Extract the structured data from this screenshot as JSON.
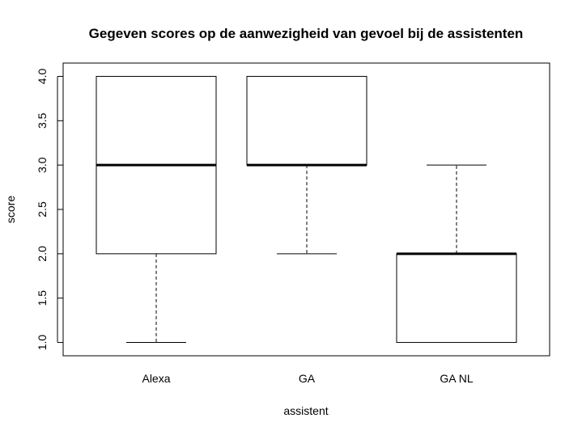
{
  "chart_data": {
    "type": "box",
    "title": "Gegeven scores op de aanwezigheid van gevoel bij de assistenten",
    "xlabel": "assistent",
    "ylabel": "score",
    "ylim": [
      0.85,
      4.15
    ],
    "yticks": [
      "1.0",
      "1.5",
      "2.0",
      "2.5",
      "3.0",
      "3.5",
      "4.0"
    ],
    "grid": false,
    "categories": [
      "Alexa",
      "GA",
      "GA NL"
    ],
    "boxes": [
      {
        "name": "Alexa",
        "whisker_low": 1,
        "q1": 2,
        "median": 3,
        "q3": 4,
        "whisker_high": 4
      },
      {
        "name": "GA",
        "whisker_low": 2,
        "q1": 3,
        "median": 3,
        "q3": 4,
        "whisker_high": 4
      },
      {
        "name": "GA NL",
        "whisker_low": 1,
        "q1": 1,
        "median": 2,
        "q3": 2,
        "whisker_high": 3
      }
    ]
  }
}
